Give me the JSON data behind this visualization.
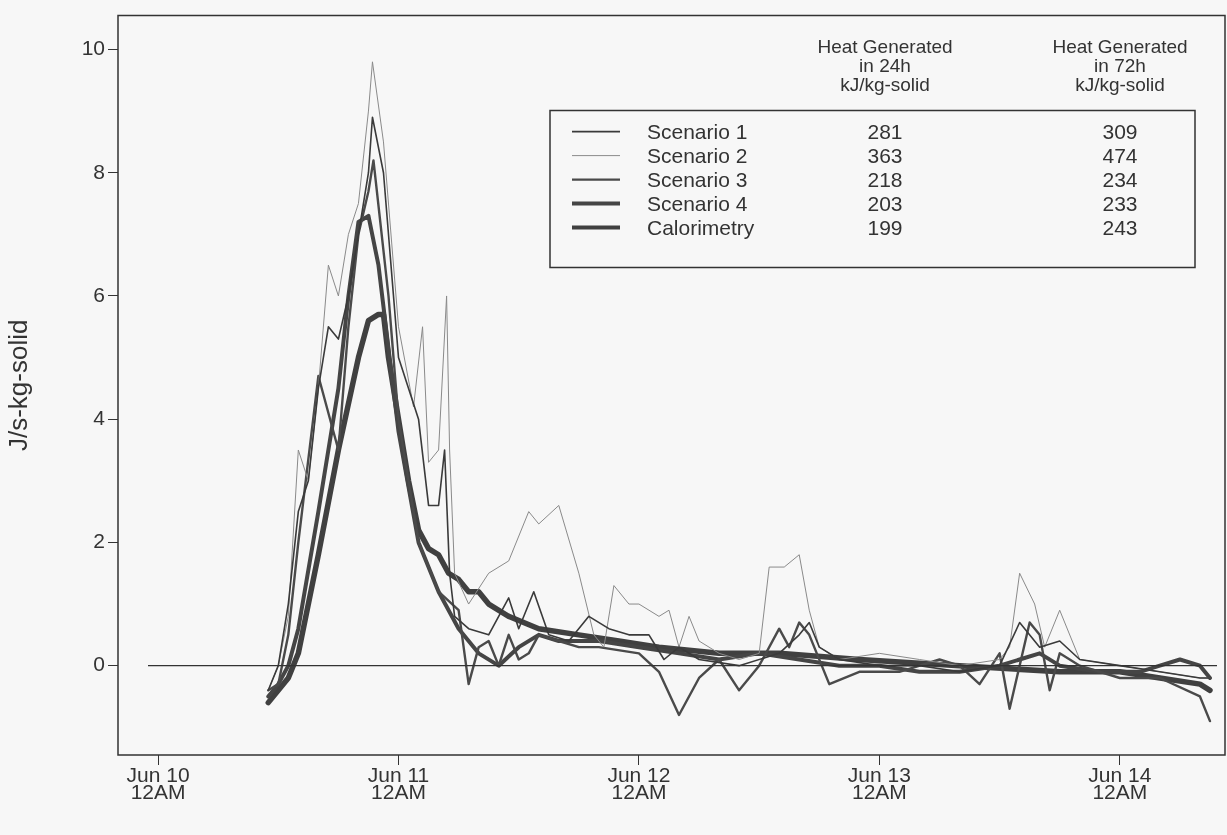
{
  "chart_data": {
    "type": "line",
    "ylabel": "J/s-kg-solid",
    "xlim": [
      "--06-09T20:00",
      "--06-14T10:30"
    ],
    "ylim": [
      -1.45,
      10.55
    ],
    "xticks": [
      {
        "value": "--06-10T00:00",
        "label": "Jun 10\n12AM"
      },
      {
        "value": "--06-11T00:00",
        "label": "Jun 11\n12AM"
      },
      {
        "value": "--06-12T00:00",
        "label": "Jun 12\n12AM"
      },
      {
        "value": "--06-13T00:00",
        "label": "Jun 13\n12AM"
      },
      {
        "value": "--06-14T00:00",
        "label": "Jun 14\n12AM"
      }
    ],
    "yticks": [
      0,
      2,
      4,
      6,
      8,
      10
    ],
    "grid": false,
    "legend": "top right",
    "marker": "none",
    "line_style": "solid",
    "ref_lines": [
      {
        "axis": "y",
        "value": 0,
        "color": "#333333"
      }
    ],
    "annotations": [
      "Heat Generated\nin 24h\nkJ/kg-solid",
      "Heat Generated\nin 72h\nkJ/kg-solid",
      "281",
      "309",
      "363",
      "474",
      "218",
      "234",
      "203",
      "233",
      "199",
      "243"
    ],
    "series": [
      {
        "name": "Scenario 1",
        "color": "#3a3a3a",
        "x": [
          "--06-10T11:00",
          "--06-10T12:00",
          "--06-10T13:00",
          "--06-10T14:00",
          "--06-10T15:00",
          "--06-10T16:00",
          "--06-10T17:00",
          "--06-10T18:00",
          "--06-10T19:00",
          "--06-10T20:00",
          "--06-10T21:00",
          "--06-10T21:24",
          "--06-10T22:30",
          "--06-11T00:00",
          "--06-11T02:00",
          "--06-11T03:00",
          "--06-11T04:00",
          "--06-11T04:36",
          "--06-11T05:06",
          "--06-11T05:36",
          "--06-11T07:00",
          "--06-11T09:00",
          "--06-11T11:00",
          "--06-11T12:00",
          "--06-11T13:30",
          "--06-11T15:00",
          "--06-11T17:00",
          "--06-11T19:00",
          "--06-11T21:00",
          "--06-11T23:00",
          "--06-12T01:00",
          "--06-12T02:30",
          "--06-12T04:00",
          "--06-12T06:00",
          "--06-12T10:00",
          "--06-12T14:00",
          "--06-12T16:00",
          "--06-12T17:00",
          "--06-12T18:00",
          "--06-12T20:00",
          "--06-13T00:00",
          "--06-13T04:00",
          "--06-13T08:00",
          "--06-13T12:00",
          "--06-13T14:00",
          "--06-13T16:00",
          "--06-13T18:00",
          "--06-13T20:00",
          "--06-14T00:00",
          "--06-14T04:00",
          "--06-14T08:00",
          "--06-14T09:00"
        ],
        "values": [
          -0.4,
          0,
          1.0,
          2.5,
          3.0,
          4.5,
          5.5,
          5.3,
          6.0,
          7.0,
          8.0,
          8.9,
          8.0,
          5.0,
          4.0,
          2.6,
          2.6,
          3.5,
          1.5,
          0.8,
          0.6,
          0.5,
          1.1,
          0.6,
          1.2,
          0.5,
          0.4,
          0.8,
          0.6,
          0.5,
          0.5,
          0.1,
          0.3,
          0.1,
          0.0,
          0.2,
          0.5,
          0.7,
          0.3,
          0.1,
          0.0,
          0.0,
          -0.1,
          0.0,
          0.7,
          0.3,
          0.4,
          0.1,
          0.0,
          -0.1,
          -0.2,
          -0.2
        ]
      },
      {
        "name": "Scenario 2",
        "color": "#8a8a8a",
        "x": [
          "--06-10T11:00",
          "--06-10T12:00",
          "--06-10T13:00",
          "--06-10T14:00",
          "--06-10T15:00",
          "--06-10T16:00",
          "--06-10T17:00",
          "--06-10T18:00",
          "--06-10T19:00",
          "--06-10T20:00",
          "--06-10T21:00",
          "--06-10T21:24",
          "--06-10T22:30",
          "--06-11T00:00",
          "--06-11T01:30",
          "--06-11T02:24",
          "--06-11T03:00",
          "--06-11T04:00",
          "--06-11T04:48",
          "--06-11T05:06",
          "--06-11T05:36",
          "--06-11T07:00",
          "--06-11T09:00",
          "--06-11T11:00",
          "--06-11T13:00",
          "--06-11T14:00",
          "--06-11T16:00",
          "--06-11T18:00",
          "--06-11T19:30",
          "--06-11T20:30",
          "--06-11T21:30",
          "--06-11T23:00",
          "--06-12T00:00",
          "--06-12T02:00",
          "--06-12T03:00",
          "--06-12T04:00",
          "--06-12T05:00",
          "--06-12T06:00",
          "--06-12T08:00",
          "--06-12T10:00",
          "--06-12T12:00",
          "--06-12T13:00",
          "--06-12T14:30",
          "--06-12T16:00",
          "--06-12T17:00",
          "--06-12T18:00",
          "--06-12T20:00",
          "--06-13T00:00",
          "--06-13T04:00",
          "--06-13T08:00",
          "--06-13T12:00",
          "--06-13T13:00",
          "--06-13T14:00",
          "--06-13T15:30",
          "--06-13T16:30",
          "--06-13T18:00",
          "--06-13T20:00",
          "--06-14T00:00",
          "--06-14T04:00",
          "--06-14T08:00",
          "--06-14T09:00"
        ],
        "values": [
          -0.4,
          0,
          0.8,
          3.5,
          3.0,
          4.5,
          6.5,
          6.0,
          7.0,
          7.5,
          9.0,
          9.8,
          8.5,
          5.5,
          4.2,
          5.5,
          3.3,
          3.5,
          6.0,
          3.5,
          1.5,
          1.0,
          1.5,
          1.7,
          2.5,
          2.3,
          2.6,
          1.5,
          0.5,
          0.3,
          1.3,
          1.0,
          1.0,
          0.8,
          0.9,
          0.3,
          0.8,
          0.4,
          0.2,
          0.1,
          0.2,
          1.6,
          1.6,
          1.8,
          0.9,
          0.3,
          0.1,
          0.2,
          0.1,
          0.0,
          0.1,
          0.3,
          1.5,
          1.0,
          0.3,
          0.9,
          0.1,
          0.0,
          -0.1,
          -0.2,
          -0.2
        ]
      },
      {
        "name": "Scenario 3",
        "color": "#4a4a4a",
        "x": [
          "--06-10T11:00",
          "--06-10T12:00",
          "--06-10T13:00",
          "--06-10T14:00",
          "--06-10T16:00",
          "--06-10T18:00",
          "--06-10T19:00",
          "--06-10T20:00",
          "--06-10T21:00",
          "--06-10T21:30",
          "--06-10T23:00",
          "--06-11T00:00",
          "--06-11T02:00",
          "--06-11T04:00",
          "--06-11T06:00",
          "--06-11T07:00",
          "--06-11T08:00",
          "--06-11T09:00",
          "--06-11T10:00",
          "--06-11T11:00",
          "--06-11T12:00",
          "--06-11T13:00",
          "--06-11T14:00",
          "--06-11T16:00",
          "--06-11T18:00",
          "--06-11T20:00",
          "--06-12T00:00",
          "--06-12T02:00",
          "--06-12T04:00",
          "--06-12T06:00",
          "--06-12T08:00",
          "--06-12T10:00",
          "--06-12T12:00",
          "--06-12T14:00",
          "--06-12T15:00",
          "--06-12T16:00",
          "--06-12T17:00",
          "--06-12T19:00",
          "--06-12T22:00",
          "--06-13T02:00",
          "--06-13T06:00",
          "--06-13T08:00",
          "--06-13T10:00",
          "--06-13T12:00",
          "--06-13T13:00",
          "--06-13T14:00",
          "--06-13T15:00",
          "--06-13T16:00",
          "--06-13T17:00",
          "--06-13T18:00",
          "--06-13T20:00",
          "--06-14T00:00",
          "--06-14T04:00",
          "--06-14T08:00",
          "--06-14T09:00"
        ],
        "values": [
          -0.4,
          -0.3,
          0.5,
          2.0,
          4.7,
          3.5,
          5.5,
          7.0,
          7.7,
          8.2,
          6.0,
          4.0,
          2.0,
          1.2,
          0.9,
          -0.3,
          0.3,
          0.4,
          0.0,
          0.5,
          0.1,
          0.2,
          0.5,
          0.4,
          0.3,
          0.3,
          0.2,
          -0.1,
          -0.8,
          -0.2,
          0.1,
          -0.4,
          0.0,
          0.6,
          0.3,
          0.7,
          0.5,
          -0.3,
          -0.1,
          -0.1,
          0.1,
          0.0,
          -0.3,
          0.2,
          -0.7,
          0.0,
          0.7,
          0.5,
          -0.4,
          0.2,
          0.0,
          -0.2,
          -0.2,
          -0.5,
          -0.9
        ]
      },
      {
        "name": "Scenario 4",
        "color": "#454545",
        "x": [
          "--06-10T11:00",
          "--06-10T12:00",
          "--06-10T13:00",
          "--06-10T14:00",
          "--06-10T16:00",
          "--06-10T18:00",
          "--06-10T19:00",
          "--06-10T20:00",
          "--06-10T21:00",
          "--06-10T22:00",
          "--06-11T00:00",
          "--06-11T02:00",
          "--06-11T04:00",
          "--06-11T06:00",
          "--06-11T08:00",
          "--06-11T10:00",
          "--06-11T12:00",
          "--06-11T14:00",
          "--06-11T16:00",
          "--06-11T20:00",
          "--06-12T00:00",
          "--06-12T04:00",
          "--06-12T08:00",
          "--06-12T12:00",
          "--06-12T16:00",
          "--06-12T20:00",
          "--06-13T00:00",
          "--06-13T04:00",
          "--06-13T08:00",
          "--06-13T12:00",
          "--06-13T14:00",
          "--06-13T16:00",
          "--06-13T18:00",
          "--06-13T22:00",
          "--06-14T02:00",
          "--06-14T04:00",
          "--06-14T06:00",
          "--06-14T08:00",
          "--06-14T09:00"
        ],
        "values": [
          -0.5,
          -0.3,
          0,
          0.6,
          2.5,
          4.5,
          6.0,
          7.2,
          7.3,
          6.5,
          3.8,
          2.0,
          1.2,
          0.6,
          0.2,
          0.0,
          0.3,
          0.5,
          0.4,
          0.4,
          0.3,
          0.2,
          0.1,
          0.2,
          0.1,
          0.0,
          0.0,
          -0.1,
          -0.1,
          0.0,
          0.1,
          0.2,
          0.0,
          -0.1,
          -0.1,
          0.0,
          0.1,
          0.0,
          -0.2
        ]
      },
      {
        "name": "Calorimetry",
        "color": "#404040",
        "x": [
          "--06-10T11:00",
          "--06-10T12:00",
          "--06-10T13:00",
          "--06-10T14:00",
          "--06-10T16:00",
          "--06-10T18:00",
          "--06-10T20:00",
          "--06-10T21:00",
          "--06-10T22:00",
          "--06-10T22:30",
          "--06-10T23:00",
          "--06-11T00:00",
          "--06-11T01:00",
          "--06-11T02:00",
          "--06-11T03:00",
          "--06-11T04:00",
          "--06-11T05:00",
          "--06-11T06:00",
          "--06-11T07:00",
          "--06-11T08:00",
          "--06-11T09:00",
          "--06-11T11:00",
          "--06-11T14:00",
          "--06-11T18:00",
          "--06-11T22:00",
          "--06-12T02:00",
          "--06-12T08:00",
          "--06-12T14:00",
          "--06-12T22:00",
          "--06-13T08:00",
          "--06-13T18:00",
          "--06-14T00:00",
          "--06-14T04:00",
          "--06-14T08:00",
          "--06-14T09:00"
        ],
        "values": [
          -0.6,
          -0.4,
          -0.2,
          0.2,
          1.8,
          3.5,
          5.0,
          5.6,
          5.7,
          5.7,
          5.0,
          4.0,
          3.0,
          2.2,
          1.9,
          1.8,
          1.5,
          1.4,
          1.2,
          1.2,
          1.0,
          0.8,
          0.6,
          0.5,
          0.4,
          0.3,
          0.2,
          0.2,
          0.1,
          0.0,
          -0.1,
          -0.1,
          -0.2,
          -0.3,
          -0.4
        ]
      }
    ]
  }
}
